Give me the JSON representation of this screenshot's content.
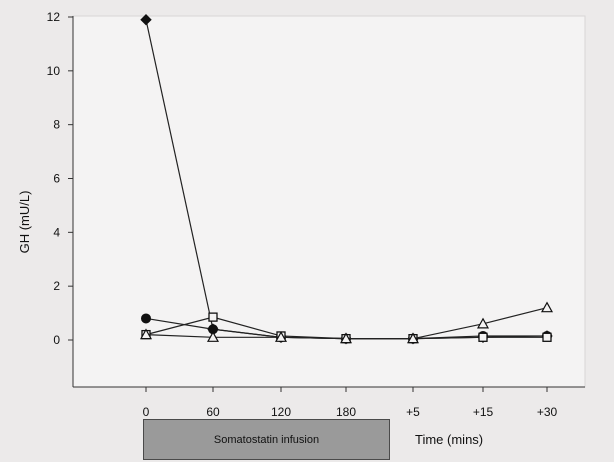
{
  "chart_data": {
    "type": "line",
    "title": "",
    "xlabel": "Time (mins)",
    "ylabel": "GH (mU/L)",
    "categories": [
      "0",
      "60",
      "120",
      "180",
      "+5",
      "+15",
      "+30"
    ],
    "ylim": [
      0,
      12
    ],
    "yticks": [
      0,
      2,
      4,
      6,
      8,
      10,
      12
    ],
    "grid": false,
    "annotation": "Somatostatin infusion",
    "series": [
      {
        "marker": "diamond",
        "color": "#222222",
        "values": [
          11.9,
          0.4,
          0.1,
          0.05,
          0.05,
          0.1,
          0.15
        ]
      },
      {
        "marker": "circle",
        "color": "#222222",
        "values": [
          0.8,
          0.4,
          0.1,
          0.05,
          0.05,
          0.15,
          0.15
        ]
      },
      {
        "marker": "square",
        "color": "#222222",
        "values": [
          0.2,
          0.85,
          0.15,
          0.05,
          0.05,
          0.1,
          0.1
        ]
      },
      {
        "marker": "triangle",
        "color": "#222222",
        "values": [
          0.2,
          0.1,
          0.1,
          0.05,
          0.05,
          0.6,
          1.2
        ]
      }
    ]
  }
}
